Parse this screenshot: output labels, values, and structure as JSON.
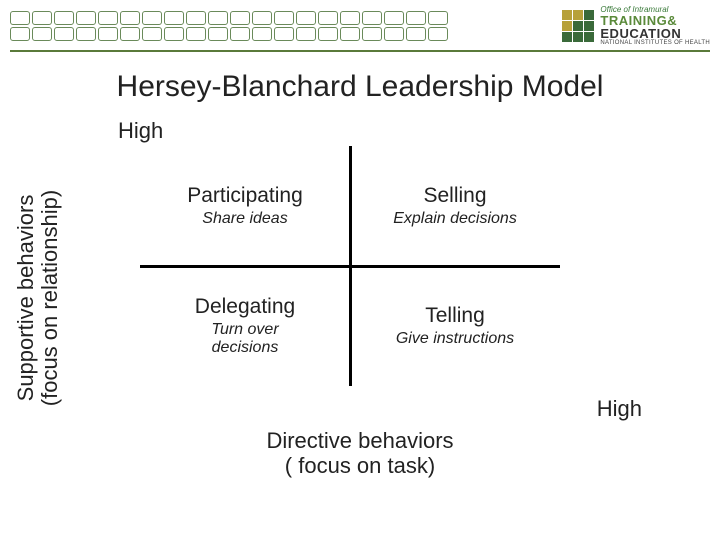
{
  "header": {
    "grid": {
      "rows": 2,
      "cols": 20,
      "border_color": "#6a8a5a",
      "fill_color": "#ffffff"
    },
    "logo": {
      "office_line": "Office of Intramural",
      "main1": "TRAINING&",
      "main2": "EDUCATION",
      "sub": "NATIONAL INSTITUTES OF HEALTH",
      "square_colors": [
        "#b7a13a",
        "#b7a13a",
        "#3a6a3a",
        "#b7a13a",
        "#3a6a3a",
        "#3a6a3a",
        "#3a6a3a",
        "#3a6a3a",
        "#3a6a3a"
      ]
    },
    "rule_color": "#5a7a3a"
  },
  "title": "Hersey-Blanchard Leadership Model",
  "axes": {
    "y_label_line1": "Supportive behaviors",
    "y_label_line2": "(focus on relationship)",
    "y_high": "High",
    "x_label_line1": "Directive behaviors",
    "x_label_line2": "( focus on task)",
    "x_high": "High",
    "line_color": "#000000",
    "line_width": 3
  },
  "quadrants": {
    "participating": {
      "title": "Participating",
      "sub": "Share ideas"
    },
    "selling": {
      "title": "Selling",
      "sub": "Explain decisions"
    },
    "delegating": {
      "title": "Delegating",
      "sub_line1": "Turn over",
      "sub_line2": "decisions"
    },
    "telling": {
      "title": "Telling",
      "sub": "Give instructions"
    }
  },
  "typography": {
    "title_fontsize": 30,
    "axis_label_fontsize": 22,
    "quadrant_title_fontsize": 21,
    "quadrant_sub_fontsize": 16
  },
  "colors": {
    "background": "#ffffff",
    "text": "#222222"
  }
}
